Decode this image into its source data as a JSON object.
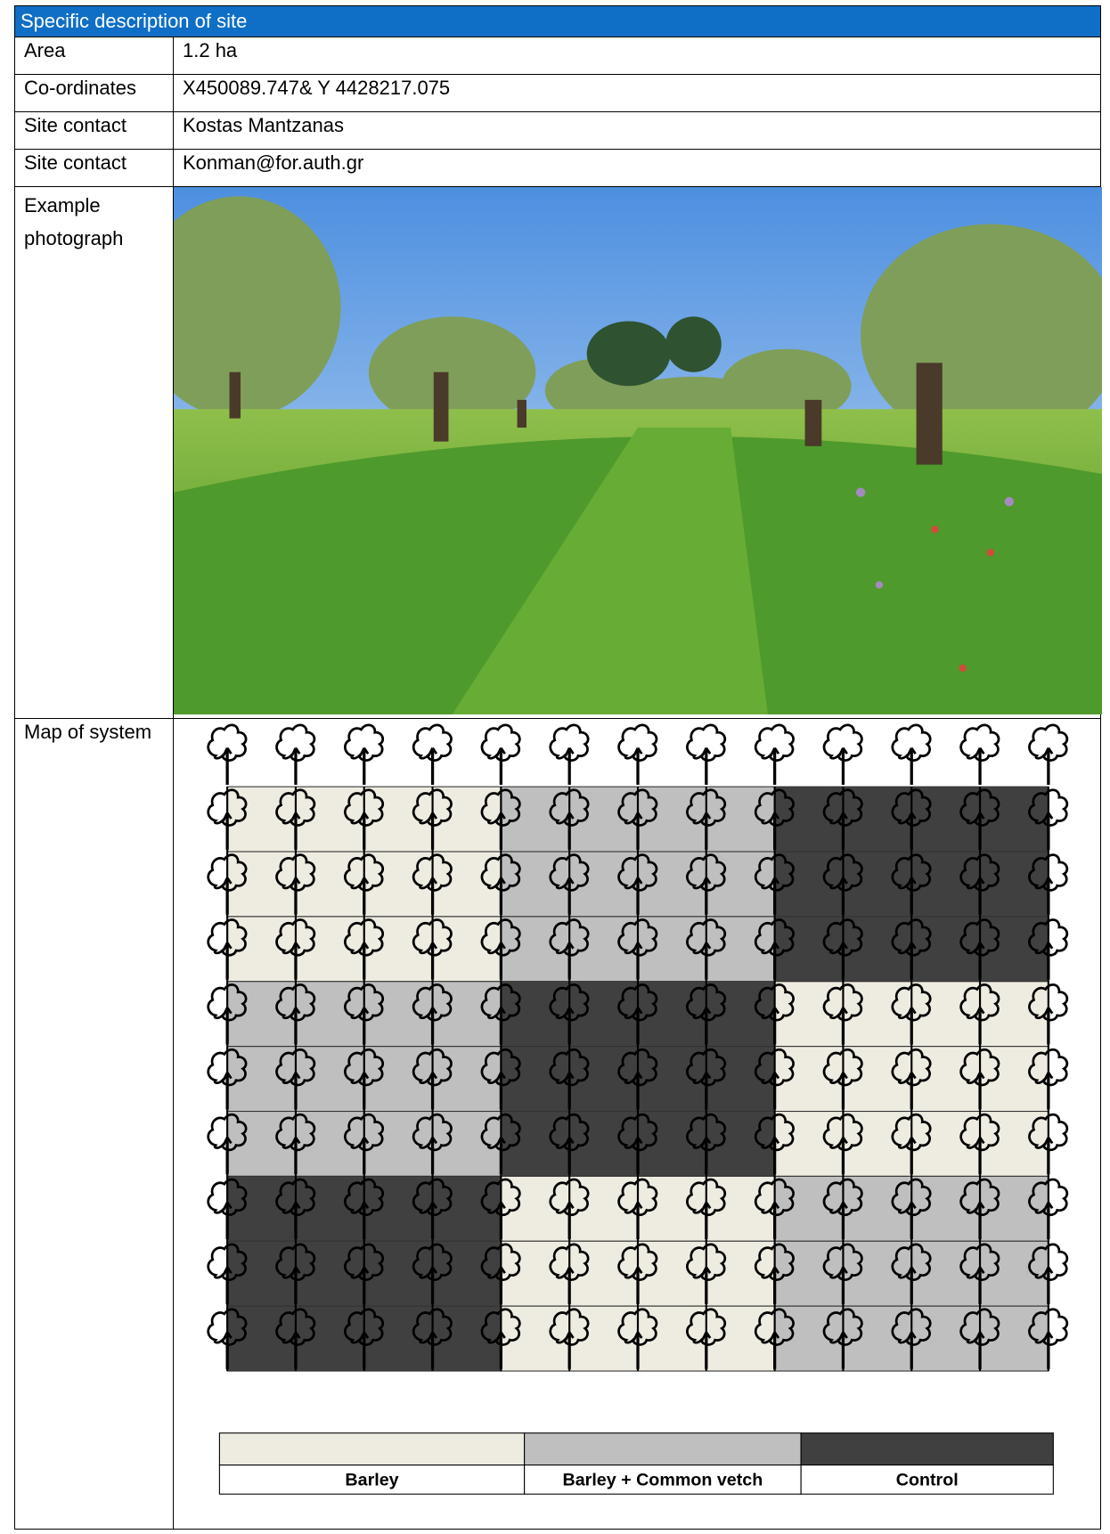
{
  "header": {
    "title": "Specific description of site"
  },
  "table": {
    "rows": [
      [
        "Area",
        "1.2 ha"
      ],
      [
        "Co-ordinates",
        "X450089.747& Y 4428217.075"
      ],
      [
        "Site contact",
        "Kostas Mantzanas"
      ],
      [
        "Site contact",
        "Konman@for.auth.gr"
      ],
      [
        "Example photograph"
      ],
      [
        "Map of system"
      ]
    ]
  },
  "legend": [
    "Barley",
    "Barley + Common vetch",
    "Control"
  ]
}
